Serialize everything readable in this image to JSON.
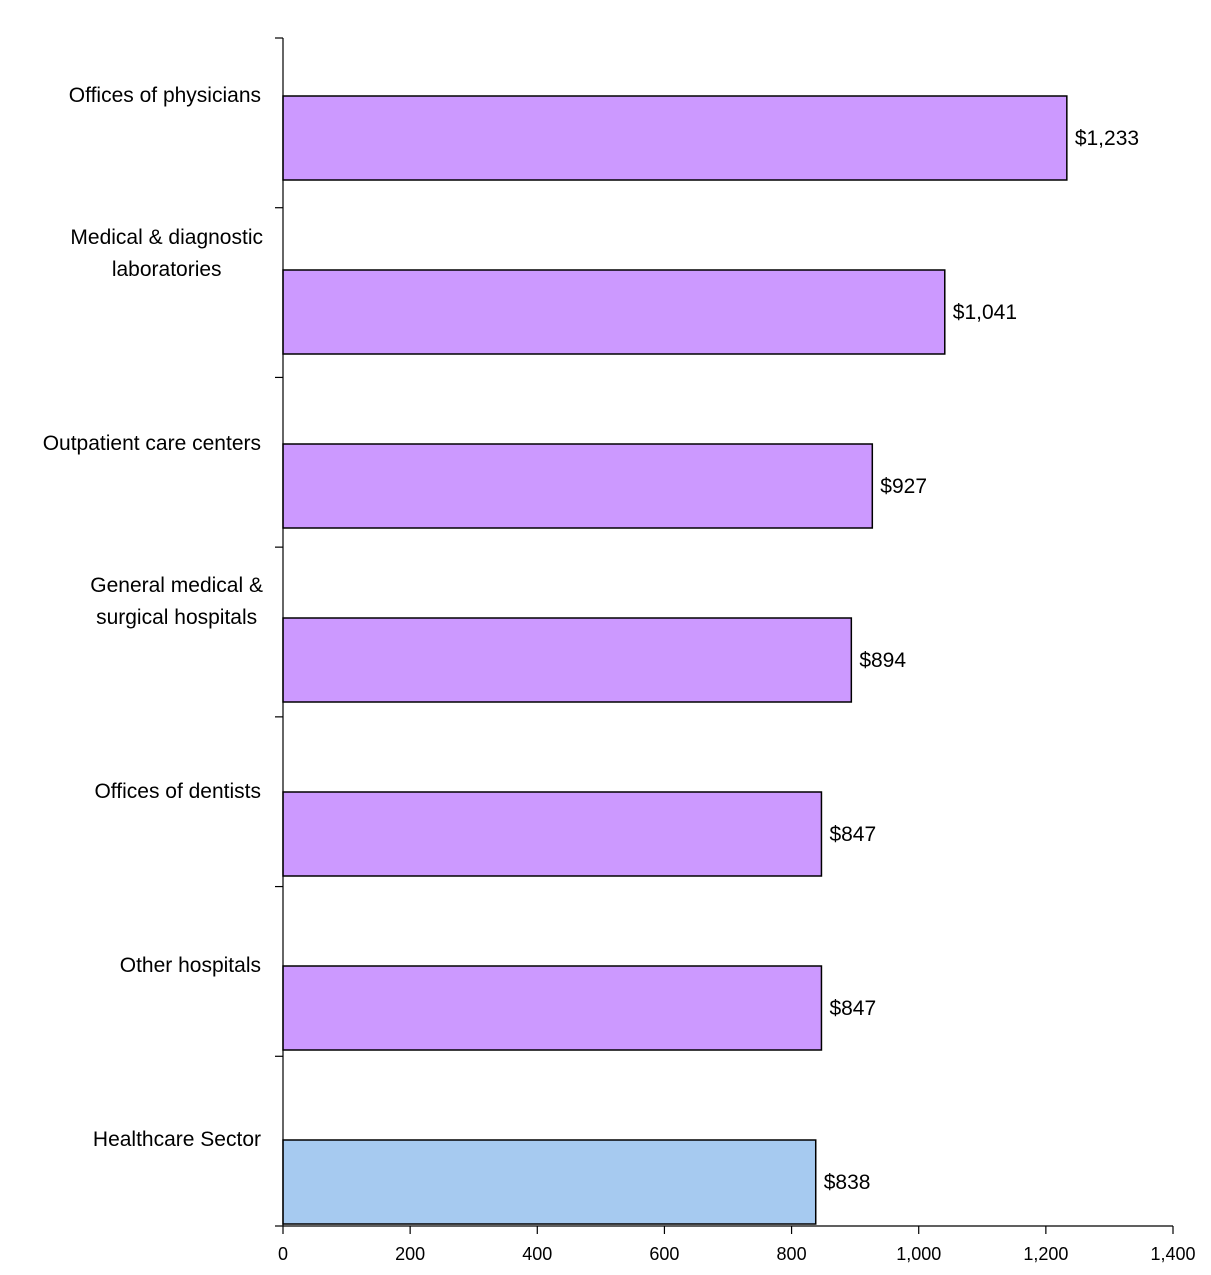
{
  "chart_data": {
    "type": "bar",
    "orientation": "horizontal",
    "title": "",
    "xlabel": "",
    "ylabel": "",
    "categories": [
      [
        "Offices of physicians"
      ],
      [
        "Medical & diagnostic",
        "laboratories"
      ],
      [
        "Outpatient care centers"
      ],
      [
        "General medical &",
        "surgical hospitals"
      ],
      [
        "Offices of dentists"
      ],
      [
        "Other hospitals"
      ],
      [
        "Healthcare Sector"
      ]
    ],
    "values": [
      1233,
      1041,
      927,
      894,
      847,
      847,
      838
    ],
    "value_labels": [
      "$1,233",
      "$1,041",
      "$927",
      "$894",
      "$847",
      "$847",
      "$838"
    ],
    "colors": [
      "#cc99ff",
      "#cc99ff",
      "#cc99ff",
      "#cc99ff",
      "#cc99ff",
      "#cc99ff",
      "#a6caf0"
    ],
    "xlim": [
      0,
      1400
    ],
    "xticks": [
      0,
      200,
      400,
      600,
      800,
      1000,
      1200,
      1400
    ],
    "xtick_labels": [
      "0",
      "200",
      "400",
      "600",
      "800",
      "1,000",
      "1,200",
      "1,400"
    ],
    "grid": false,
    "legend": "none"
  }
}
